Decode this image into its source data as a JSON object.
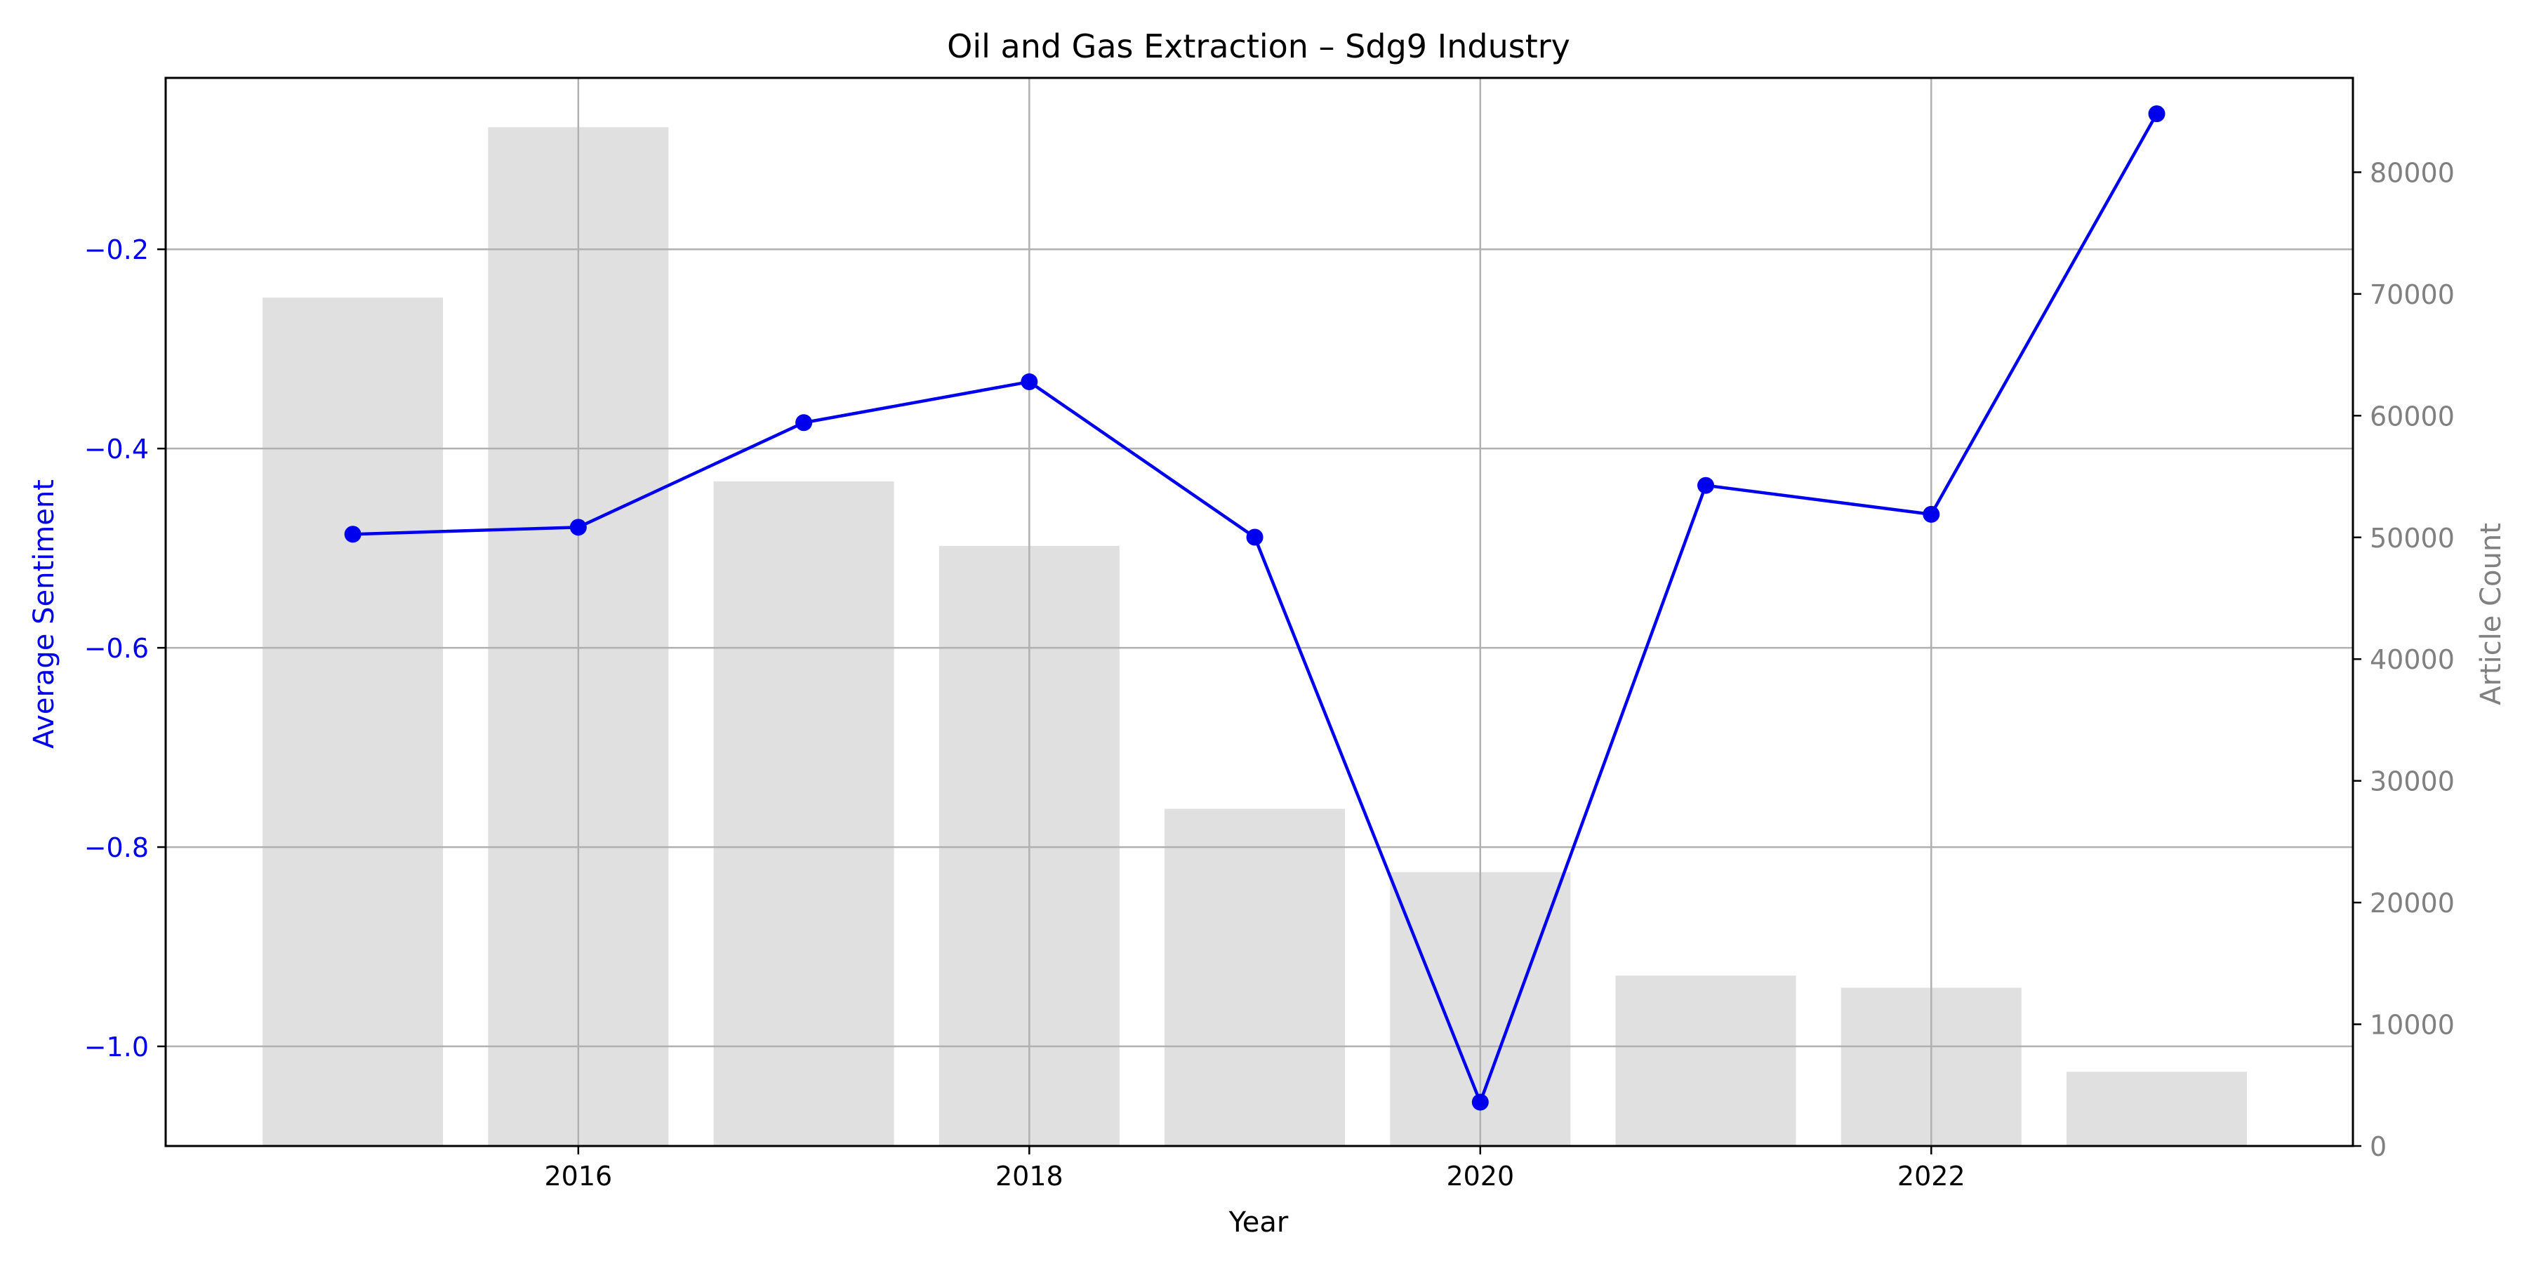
{
  "chart_data": {
    "type": "bar",
    "title": "Oil and Gas Extraction – Sdg9 Industry",
    "xlabel": "Year",
    "ylabel_left": "Average Sentiment",
    "ylabel_right": "Article Count",
    "x": [
      2015,
      2016,
      2017,
      2018,
      2019,
      2020,
      2021,
      2022,
      2023
    ],
    "xticks": [
      "2016",
      "2018",
      "2020",
      "2022"
    ],
    "xlim": [
      2014.17,
      2023.87
    ],
    "series": [
      {
        "type": "bar",
        "axis": "right",
        "values": [
          69700,
          83700,
          54600,
          49300,
          27700,
          22500,
          14000,
          13000,
          6100
        ]
      },
      {
        "type": "line",
        "axis": "left",
        "values": [
          -0.486,
          -0.479,
          -0.374,
          -0.333,
          -0.489,
          -1.056,
          -0.437,
          -0.466,
          -0.064
        ]
      }
    ],
    "ylim_left": [
      -1.1,
      -0.028
    ],
    "yticks_left": [
      "−1.0",
      "−0.8",
      "−0.6",
      "−0.4",
      "−0.2"
    ],
    "ylim_right": [
      0,
      87750
    ],
    "yticks_right": [
      "0",
      "10000",
      "20000",
      "30000",
      "40000",
      "50000",
      "60000",
      "70000",
      "80000"
    ],
    "grid": true,
    "colors": {
      "line": "#0000ee",
      "bars": "#e0e0e0",
      "left_axis": "#0000ee",
      "right_axis": "#808080",
      "grid": "#b0b0b0"
    }
  }
}
